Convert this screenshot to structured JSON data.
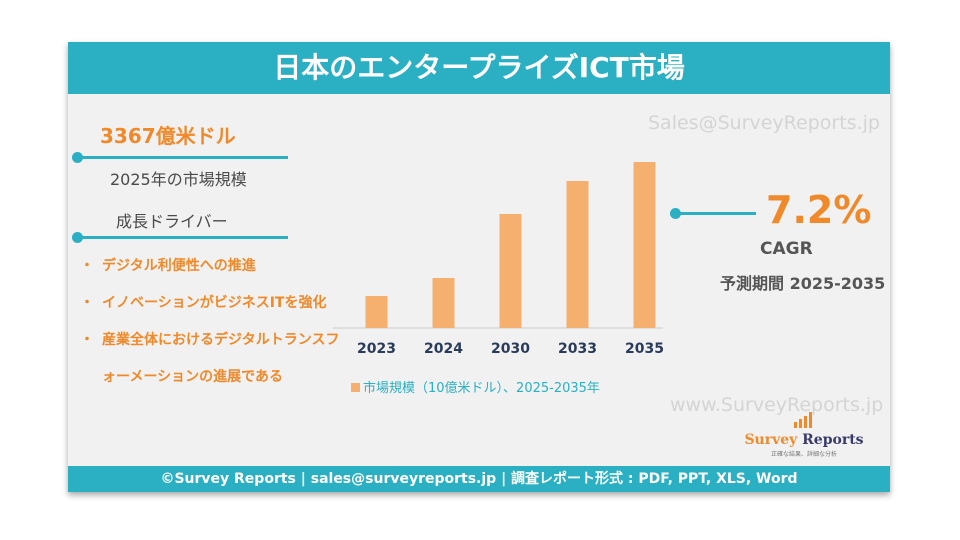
{
  "header": {
    "title": "日本のエンタープライズICT市場"
  },
  "watermarks": {
    "email": "Sales@SurveyReports.jp",
    "website": "www.SurveyReports.jp"
  },
  "market": {
    "value": "3367億米ドル",
    "caption": "2025年の市場規模",
    "drivers_title": "成長ドライバー",
    "bullet_symbol": "・",
    "drivers": [
      "デジタル利便性への推進",
      "イノベーションがビジネスITを強化",
      "産業全体におけるデジタルトランスフォーメーションの進展である"
    ]
  },
  "cagr": {
    "value": "7.2%",
    "label": "CAGR",
    "period": "予測期間 2025-2035"
  },
  "logo": {
    "name_part1": "Survey",
    "name_part2": "Reports",
    "tagline": "正確な結果、詳細な分析"
  },
  "footer": {
    "text": "©Survey Reports | sales@surveyreports.jp |  調査レポート形式 : PDF, PPT, XLS, Word"
  },
  "colors": {
    "teal": "#2ab0c2",
    "orange": "#f0892a",
    "bar": "#f5b06f"
  },
  "chart_data": {
    "type": "bar",
    "categories": [
      "2023",
      "2024",
      "2030",
      "2033",
      "2035"
    ],
    "series": [
      {
        "name": "市場規模（10億米ドル）、2025-2035年",
        "values": [
          32,
          50,
          114,
          147,
          166
        ]
      }
    ],
    "ylim": [
      0,
      180
    ],
    "grid": false,
    "legend": "bottom"
  }
}
